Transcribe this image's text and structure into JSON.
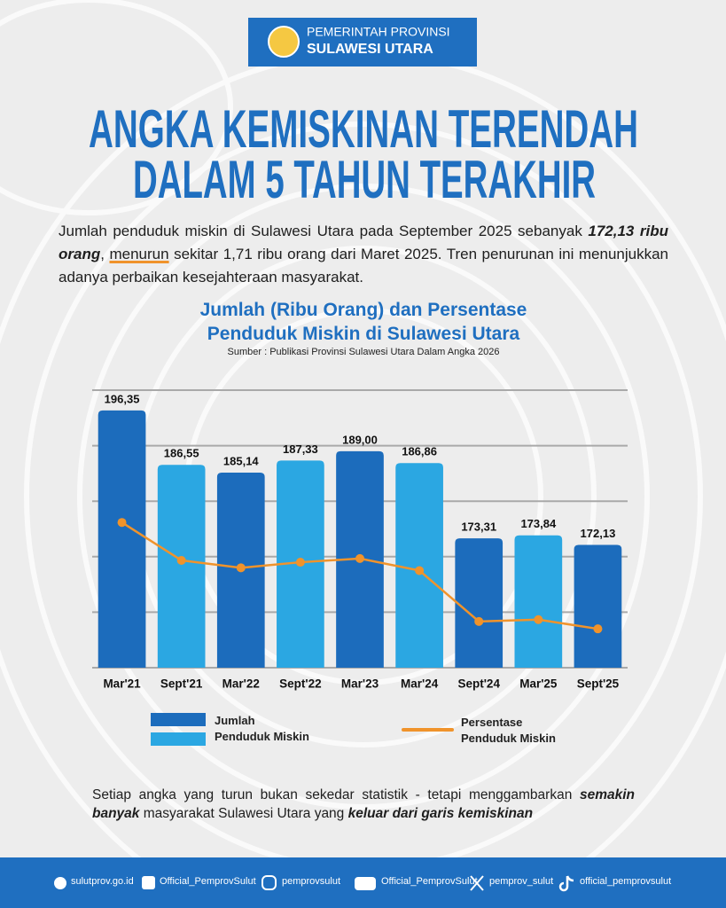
{
  "header": {
    "line1": "PEMERINTAH PROVINSI",
    "line2": "SULAWESI UTARA"
  },
  "headline": [
    "ANGKA KEMISKINAN TERENDAH",
    "DALAM 5 TAHUN TERAKHIR"
  ],
  "intro": [
    "Jumlah penduduk miskin di Sulawesi Utara pada September 2025 sebanyak ",
    "172,13 ribu orang",
    ", ",
    "menurun",
    " sekitar 1,71 ribu orang dari Maret 2025. Tren penurunan ini menunjukkan adanya perbaikan kesejahteraan masyarakat."
  ],
  "chart_data": {
    "type": "bar_line",
    "title": "Jumlah (Ribu Orang) dan Persentase\nPenduduk Miskin di Sulawesi Utara",
    "subtitle": "Sumber : Publikasi Provinsi Sulawesi Utara Dalam Angka 2026",
    "categories": [
      "Mar'21",
      "Sept'21",
      "Mar'22",
      "Sept'22",
      "Mar'23",
      "Mar'24",
      "Sept'24",
      "Mar'25",
      "Sept'25"
    ],
    "ylim": [
      150,
      200
    ],
    "gridlines": [
      150,
      160,
      170,
      180,
      190,
      200
    ],
    "grid": true,
    "y2lim": [
      6.2,
      9.2
    ],
    "series": [
      {
        "name": "Jumlah\nPenduduk Miskin",
        "type": "bar",
        "colors": [
          "#1c6cbc",
          "#2ba7e2",
          "#1c6cbc",
          "#2ba7e2",
          "#1c6cbc",
          "#2ba7e2",
          "#1c6cbc",
          "#2ba7e2",
          "#1c6cbc"
        ],
        "values": [
          196.35,
          186.55,
          185.14,
          187.33,
          189.0,
          186.86,
          173.31,
          173.84,
          172.13
        ],
        "value_labels": [
          "196,35",
          "186,55",
          "185,14",
          "187,33",
          "189,00",
          "186,86",
          "173,31",
          "173,84",
          "172,13"
        ]
      },
      {
        "name": "Persentase\nPenduduk Miskin",
        "type": "line",
        "axis": "y2",
        "color": "#f0932b",
        "values": [
          7.77,
          7.36,
          7.28,
          7.34,
          7.38,
          7.25,
          6.7,
          6.72,
          6.62
        ]
      }
    ]
  },
  "closing": [
    "Setiap angka yang turun bukan sekedar statistik - tetapi menggambarkan ",
    "semakin banyak",
    " masyarakat Sulawesi Utara yang ",
    "keluar dari garis kemiskinan"
  ],
  "footer": [
    "sulutprov.go.id",
    "Official_PemprovSulut",
    "pemprovsulut",
    "Official_PemprovSulut",
    "pemprov_sulut",
    "official_pemprovsulut"
  ]
}
